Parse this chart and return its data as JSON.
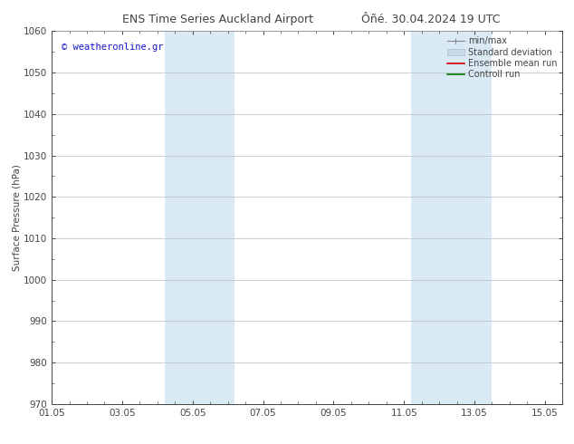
{
  "title_left": "ENS Time Series Auckland Airport",
  "title_right": "Ôñé. 30.04.2024 19 UTC",
  "ylabel": "Surface Pressure (hPa)",
  "ylim": [
    970,
    1060
  ],
  "yticks": [
    970,
    980,
    990,
    1000,
    1010,
    1020,
    1030,
    1040,
    1050,
    1060
  ],
  "xlim_start": 0.0,
  "xlim_end": 14.5,
  "xtick_labels": [
    "01.05",
    "03.05",
    "05.05",
    "07.05",
    "09.05",
    "11.05",
    "13.05",
    "15.05"
  ],
  "xtick_positions": [
    0,
    2,
    4,
    6,
    8,
    10,
    12,
    14
  ],
  "shaded_regions": [
    {
      "x_start": 3.2,
      "x_end": 5.2,
      "color": "#daeaf5"
    },
    {
      "x_start": 10.2,
      "x_end": 12.5,
      "color": "#daeaf5"
    }
  ],
  "watermark_text": "© weatheronline.gr",
  "watermark_color": "#1515cc",
  "background_color": "#ffffff",
  "legend_items": [
    {
      "label": "min/max"
    },
    {
      "label": "Standard deviation"
    },
    {
      "label": "Ensemble mean run"
    },
    {
      "label": "Controll run"
    }
  ],
  "minmax_color": "#888888",
  "std_dev_color": "#c8daea",
  "ensemble_color": "#cc0000",
  "control_color": "#007700",
  "grid_color": "#bbbbbb",
  "tick_color": "#444444",
  "spine_color": "#444444",
  "font_size": 7.5,
  "title_font_size": 9,
  "legend_font_size": 7.0
}
